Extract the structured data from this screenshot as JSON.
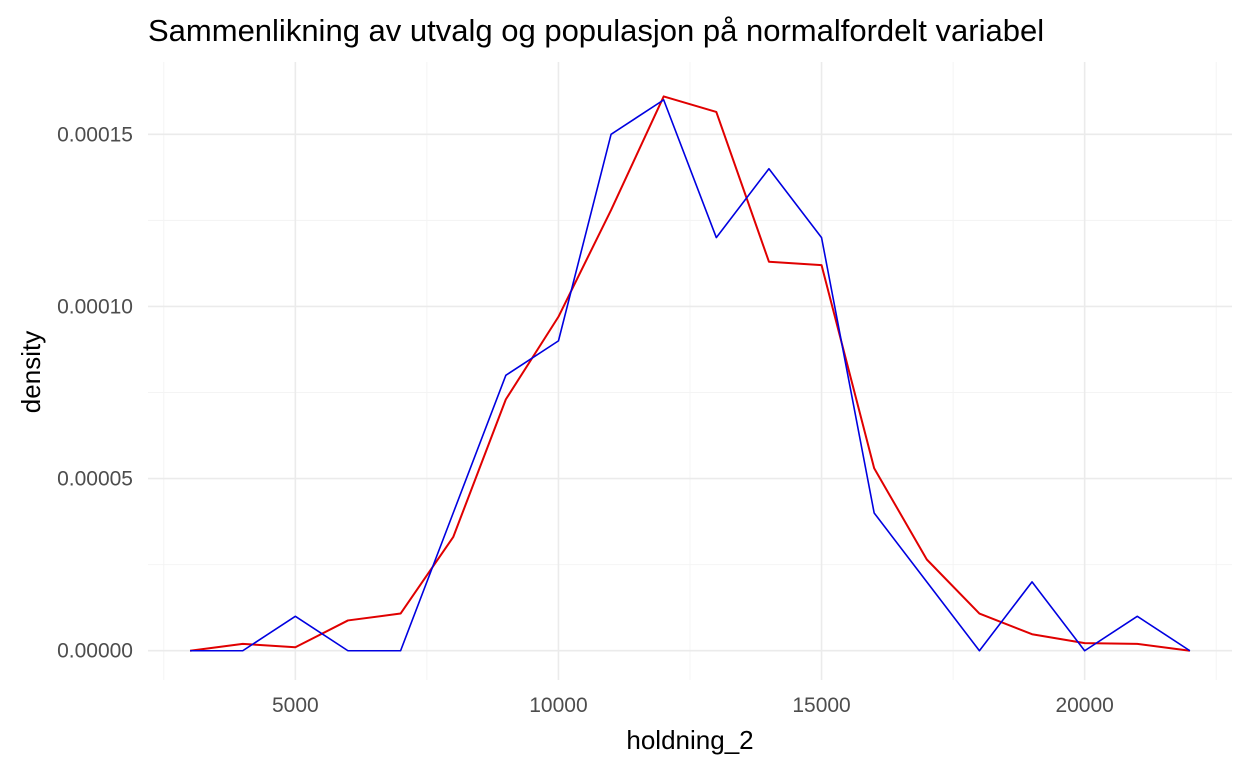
{
  "chart_data": {
    "type": "line",
    "title": "Sammenlikning av utvalg og populasjon på normalfordelt variabel",
    "xlabel": "holdning_2",
    "ylabel": "density",
    "xlim": [
      2200,
      22800
    ],
    "ylim": [
      -8.5e-06,
      0.000171
    ],
    "x_ticks": [
      5000,
      10000,
      15000,
      20000
    ],
    "x_tick_labels": [
      "5000",
      "10000",
      "15000",
      "20000"
    ],
    "y_ticks": [
      0,
      5e-05,
      0.0001,
      0.00015
    ],
    "y_tick_labels": [
      "0.00000",
      "0.00005",
      "0.00010",
      "0.00015"
    ],
    "grid": true,
    "legend": "none",
    "series": [
      {
        "color": "#e00000",
        "x": [
          3000,
          4000,
          5000,
          6000,
          7000,
          8000,
          9000,
          10000,
          11000,
          12000,
          13000,
          14000,
          15000,
          16000,
          17000,
          18000,
          19000,
          20000,
          21000,
          22000
        ],
        "y": [
          0.0,
          2e-06,
          1e-06,
          8.8e-06,
          1.08e-05,
          3.3e-05,
          7.3e-05,
          9.7e-05,
          0.000128,
          0.000161,
          0.0001565,
          0.000113,
          0.000112,
          5.3e-05,
          2.65e-05,
          1.08e-05,
          4.8e-06,
          2.2e-06,
          2e-06,
          0.0
        ]
      },
      {
        "color": "#0000e0",
        "x": [
          3000,
          4000,
          5000,
          6000,
          7000,
          8000,
          9000,
          10000,
          11000,
          12000,
          13000,
          14000,
          15000,
          16000,
          17000,
          18000,
          19000,
          20000,
          21000,
          22000
        ],
        "y": [
          0.0,
          0.0,
          1e-05,
          0.0,
          0.0,
          4e-05,
          8e-05,
          9e-05,
          0.00015,
          0.00016,
          0.00012,
          0.00014,
          0.00012,
          4e-05,
          2e-05,
          0.0,
          2e-05,
          0.0,
          1e-05,
          0.0
        ]
      }
    ]
  }
}
